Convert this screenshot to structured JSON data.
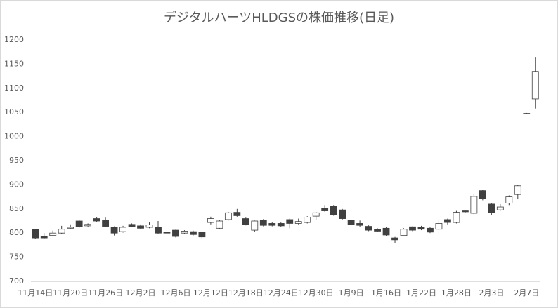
{
  "chart_data": {
    "type": "candlestick",
    "title": "デジタルハーツHLDGSの株価推移(日足)",
    "categories": [
      "11月14日",
      null,
      null,
      null,
      "11月20日",
      null,
      null,
      null,
      "11月26日",
      null,
      null,
      null,
      "12月2日",
      null,
      null,
      null,
      "12月6日",
      null,
      null,
      null,
      "12月12日",
      null,
      null,
      null,
      "12月18日",
      null,
      null,
      null,
      "12月24日",
      null,
      null,
      null,
      "12月30日",
      null,
      null,
      null,
      "1月9日",
      null,
      null,
      null,
      "1月16日",
      null,
      null,
      null,
      "1月22日",
      null,
      null,
      null,
      "1月28日",
      null,
      null,
      null,
      "2月3日",
      null,
      null,
      null,
      "2月7日",
      null
    ],
    "open": [
      808,
      793,
      795,
      800,
      810,
      825,
      815,
      830,
      826,
      812,
      803,
      818,
      815,
      812,
      812,
      802,
      806,
      800,
      803,
      802,
      822,
      810,
      828,
      843,
      830,
      806,
      827,
      820,
      820,
      828,
      820,
      822,
      835,
      852,
      856,
      848,
      826,
      820,
      814,
      808,
      810,
      790,
      795,
      813,
      812,
      810,
      808,
      828,
      822,
      846,
      841,
      888,
      860,
      848,
      862,
      880,
      1048,
      1078
    ],
    "high": [
      808,
      800,
      805,
      815,
      818,
      828,
      820,
      833,
      832,
      814,
      815,
      820,
      818,
      822,
      825,
      803,
      807,
      806,
      805,
      804,
      834,
      827,
      844,
      850,
      832,
      826,
      829,
      822,
      822,
      830,
      830,
      835,
      844,
      858,
      858,
      850,
      828,
      826,
      816,
      810,
      812,
      792,
      810,
      814,
      815,
      812,
      828,
      830,
      846,
      848,
      880,
      889,
      862,
      860,
      878,
      900,
      1049,
      1165
    ],
    "low": [
      788,
      788,
      793,
      798,
      808,
      811,
      813,
      823,
      812,
      795,
      801,
      812,
      808,
      810,
      798,
      797,
      791,
      798,
      795,
      788,
      818,
      808,
      826,
      834,
      816,
      803,
      814,
      814,
      813,
      810,
      818,
      820,
      828,
      844,
      836,
      828,
      816,
      812,
      804,
      802,
      794,
      780,
      793,
      804,
      806,
      800,
      806,
      818,
      820,
      842,
      839,
      868,
      838,
      846,
      858,
      870,
      1046,
      1058
    ],
    "close": [
      790,
      790,
      800,
      808,
      812,
      813,
      818,
      825,
      814,
      800,
      812,
      814,
      810,
      817,
      800,
      800,
      793,
      804,
      797,
      792,
      830,
      825,
      842,
      836,
      818,
      825,
      816,
      816,
      815,
      820,
      824,
      833,
      842,
      846,
      838,
      830,
      818,
      816,
      806,
      804,
      796,
      786,
      808,
      806,
      808,
      802,
      820,
      822,
      843,
      844,
      876,
      872,
      842,
      854,
      875,
      898,
      1047,
      1135
    ],
    "up_color": "#ffffff",
    "down_color": "#404040",
    "line_color": "#404040",
    "ylim": [
      700,
      1200
    ],
    "yticks": [
      700,
      750,
      800,
      850,
      900,
      950,
      1000,
      1050,
      1100,
      1150,
      1200
    ],
    "grid": false
  }
}
